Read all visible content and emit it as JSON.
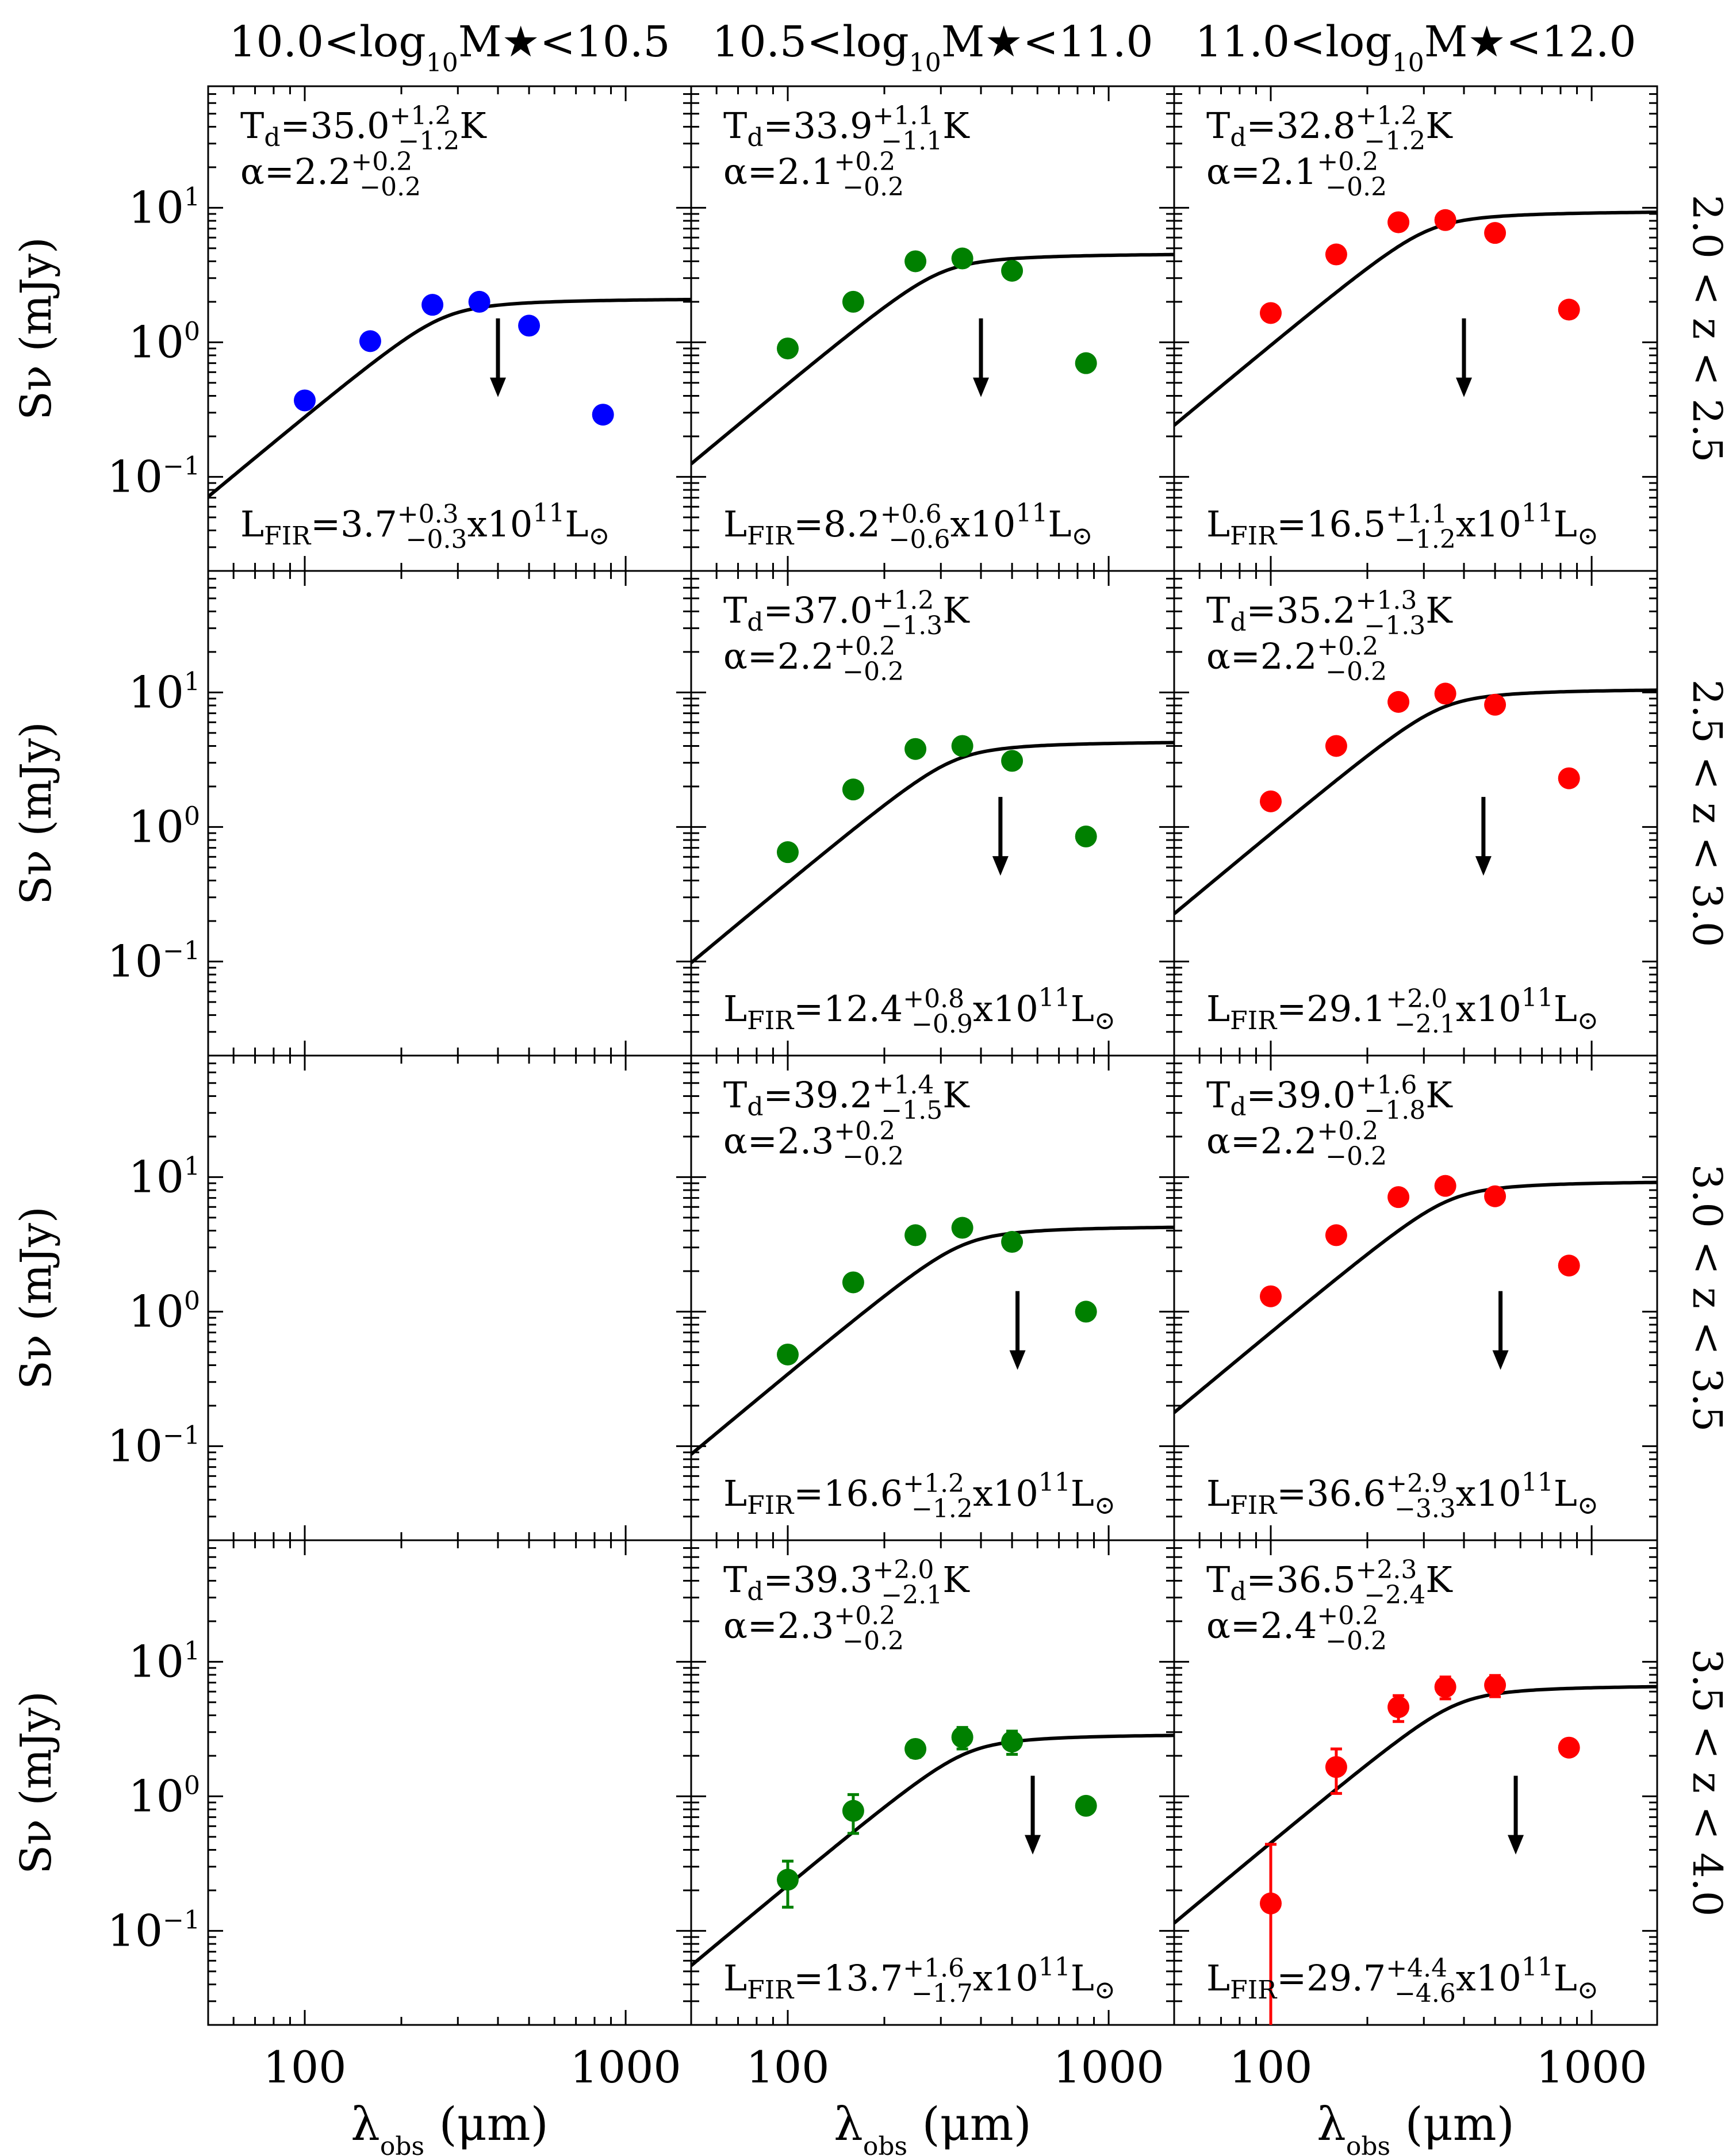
{
  "chart_data": {
    "type": "scatter",
    "title": "",
    "column_titles": [
      "10.0<log10M★<10.5",
      "10.5<log10M★<11.0",
      "11.0<log10M★<12.0"
    ],
    "row_labels": [
      "2.0 < z < 2.5",
      "2.5 < z < 3.0",
      "3.0 < z < 3.5",
      "3.5 < z < 4.0"
    ],
    "xlabel": "λobs (μm)",
    "ylabel": "Sν (mJy)",
    "xscale": "log",
    "yscale": "log",
    "xlim": [
      50,
      1600
    ],
    "ylim": [
      0.02,
      80
    ],
    "x_ticks": [
      "100",
      "1000"
    ],
    "y_ticks": [
      {
        "base": "10",
        "exp": "1"
      },
      {
        "base": "10",
        "exp": "0"
      },
      {
        "base": "10",
        "exp": "−1"
      }
    ],
    "model": "modified blackbody with mid-IR power law (solid black curve)",
    "panels": [
      {
        "row": 0,
        "col": 0,
        "empty": false,
        "color": "#0000ff",
        "wavelengths": [
          100,
          160,
          250,
          350,
          500,
          850
        ],
        "flux": [
          0.37,
          1.02,
          1.9,
          2.0,
          1.33,
          0.29
        ],
        "err": [
          0.02,
          0.03,
          0.05,
          0.05,
          0.05,
          0.02
        ],
        "upper_limit": {
          "x": 400,
          "y": 0.72
        },
        "peak": {
          "x": 270,
          "y": 2.15
        },
        "td": {
          "value": "35.0",
          "plus": "+1.2",
          "minus": "−1.2"
        },
        "alpha": {
          "value": "2.2",
          "plus": "+0.2",
          "minus": "−0.2"
        },
        "lfir": {
          "value": "3.7",
          "plus": "+0.3",
          "minus": "−0.3"
        }
      },
      {
        "row": 0,
        "col": 1,
        "empty": false,
        "color": "#008000",
        "wavelengths": [
          100,
          160,
          250,
          350,
          500,
          850
        ],
        "flux": [
          0.9,
          2.0,
          4.0,
          4.2,
          3.4,
          0.7
        ],
        "err": [
          0.03,
          0.05,
          0.1,
          0.1,
          0.1,
          0.03
        ],
        "upper_limit": {
          "x": 400,
          "y": 0.72
        },
        "peak": {
          "x": 300,
          "y": 4.65
        },
        "td": {
          "value": "33.9",
          "plus": "+1.1",
          "minus": "−1.1"
        },
        "alpha": {
          "value": "2.1",
          "plus": "+0.2",
          "minus": "−0.2"
        },
        "lfir": {
          "value": "8.2",
          "plus": "+0.6",
          "minus": "−0.6"
        }
      },
      {
        "row": 0,
        "col": 2,
        "empty": false,
        "color": "#ff0000",
        "wavelengths": [
          100,
          160,
          250,
          350,
          500,
          850
        ],
        "flux": [
          1.65,
          4.5,
          7.8,
          8.1,
          6.5,
          1.75
        ],
        "err": [
          0.05,
          0.1,
          0.2,
          0.2,
          0.2,
          0.05
        ],
        "upper_limit": {
          "x": 400,
          "y": 0.72
        },
        "peak": {
          "x": 310,
          "y": 9.6
        },
        "td": {
          "value": "32.8",
          "plus": "+1.2",
          "minus": "−1.2"
        },
        "alpha": {
          "value": "2.1",
          "plus": "+0.2",
          "minus": "−0.2"
        },
        "lfir": {
          "value": "16.5",
          "plus": "+1.1",
          "minus": "−1.2"
        }
      },
      {
        "row": 1,
        "col": 0,
        "empty": true
      },
      {
        "row": 1,
        "col": 1,
        "empty": false,
        "color": "#008000",
        "wavelengths": [
          100,
          160,
          250,
          350,
          500,
          850
        ],
        "flux": [
          0.65,
          1.9,
          3.8,
          4.0,
          3.1,
          0.85
        ],
        "err": [
          0.03,
          0.05,
          0.1,
          0.1,
          0.1,
          0.03
        ],
        "upper_limit": {
          "x": 460,
          "y": 0.8
        },
        "peak": {
          "x": 330,
          "y": 4.4
        },
        "td": {
          "value": "37.0",
          "plus": "+1.2",
          "minus": "−1.3"
        },
        "alpha": {
          "value": "2.2",
          "plus": "+0.2",
          "minus": "−0.2"
        },
        "lfir": {
          "value": "12.4",
          "plus": "+0.8",
          "minus": "−0.9"
        }
      },
      {
        "row": 1,
        "col": 2,
        "empty": false,
        "color": "#ff0000",
        "wavelengths": [
          100,
          160,
          250,
          350,
          500,
          850
        ],
        "flux": [
          1.55,
          4.0,
          8.5,
          9.8,
          8.1,
          2.3
        ],
        "err": [
          0.05,
          0.1,
          0.2,
          0.2,
          0.2,
          0.06
        ],
        "upper_limit": {
          "x": 460,
          "y": 0.8
        },
        "peak": {
          "x": 340,
          "y": 10.8
        },
        "td": {
          "value": "35.2",
          "plus": "+1.3",
          "minus": "−1.3"
        },
        "alpha": {
          "value": "2.2",
          "plus": "+0.2",
          "minus": "−0.2"
        },
        "lfir": {
          "value": "29.1",
          "plus": "+2.0",
          "minus": "−2.1"
        }
      },
      {
        "row": 2,
        "col": 0,
        "empty": true
      },
      {
        "row": 2,
        "col": 1,
        "empty": false,
        "color": "#008000",
        "wavelengths": [
          100,
          160,
          250,
          350,
          500,
          850
        ],
        "flux": [
          0.48,
          1.65,
          3.7,
          4.2,
          3.3,
          1.0
        ],
        "err": [
          0.03,
          0.05,
          0.1,
          0.1,
          0.1,
          0.04
        ],
        "upper_limit": {
          "x": 520,
          "y": 0.68
        },
        "peak": {
          "x": 350,
          "y": 4.4
        },
        "td": {
          "value": "39.2",
          "plus": "+1.4",
          "minus": "−1.5"
        },
        "alpha": {
          "value": "2.3",
          "plus": "+0.2",
          "minus": "−0.2"
        },
        "lfir": {
          "value": "16.6",
          "plus": "+1.2",
          "minus": "−1.2"
        }
      },
      {
        "row": 2,
        "col": 2,
        "empty": false,
        "color": "#ff0000",
        "wavelengths": [
          100,
          160,
          250,
          350,
          500,
          850
        ],
        "flux": [
          1.3,
          3.7,
          7.1,
          8.6,
          7.2,
          2.2
        ],
        "err": [
          0.05,
          0.1,
          0.2,
          0.2,
          0.2,
          0.06
        ],
        "upper_limit": {
          "x": 520,
          "y": 0.68
        },
        "peak": {
          "x": 360,
          "y": 9.5
        },
        "td": {
          "value": "39.0",
          "plus": "+1.6",
          "minus": "−1.8"
        },
        "alpha": {
          "value": "2.2",
          "plus": "+0.2",
          "minus": "−0.2"
        },
        "lfir": {
          "value": "36.6",
          "plus": "+2.9",
          "minus": "−3.3"
        }
      },
      {
        "row": 3,
        "col": 0,
        "empty": true
      },
      {
        "row": 3,
        "col": 1,
        "empty": false,
        "color": "#008000",
        "wavelengths": [
          100,
          160,
          250,
          350,
          500,
          850
        ],
        "flux": [
          0.24,
          0.78,
          2.25,
          2.75,
          2.55,
          0.85
        ],
        "err": [
          0.09,
          0.25,
          0.3,
          0.5,
          0.5,
          0.05
        ],
        "upper_limit": {
          "x": 580,
          "y": 0.68
        },
        "peak": {
          "x": 360,
          "y": 2.95
        },
        "td": {
          "value": "39.3",
          "plus": "+2.0",
          "minus": "−2.1"
        },
        "alpha": {
          "value": "2.3",
          "plus": "+0.2",
          "minus": "−0.2"
        },
        "lfir": {
          "value": "13.7",
          "plus": "+1.6",
          "minus": "−1.7"
        }
      },
      {
        "row": 3,
        "col": 2,
        "empty": false,
        "color": "#ff0000",
        "wavelengths": [
          100,
          160,
          250,
          350,
          500,
          850
        ],
        "flux": [
          0.16,
          1.65,
          4.6,
          6.5,
          6.7,
          2.3
        ],
        "err": [
          0.28,
          0.6,
          1.0,
          1.2,
          1.2,
          0.08
        ],
        "upper_limit": {
          "x": 580,
          "y": 0.68
        },
        "peak": {
          "x": 380,
          "y": 6.8
        },
        "td": {
          "value": "36.5",
          "plus": "+2.3",
          "minus": "−2.4"
        },
        "alpha": {
          "value": "2.4",
          "plus": "+0.2",
          "minus": "−0.2"
        },
        "lfir": {
          "value": "29.7",
          "plus": "+4.4",
          "minus": "−4.6"
        }
      }
    ]
  }
}
